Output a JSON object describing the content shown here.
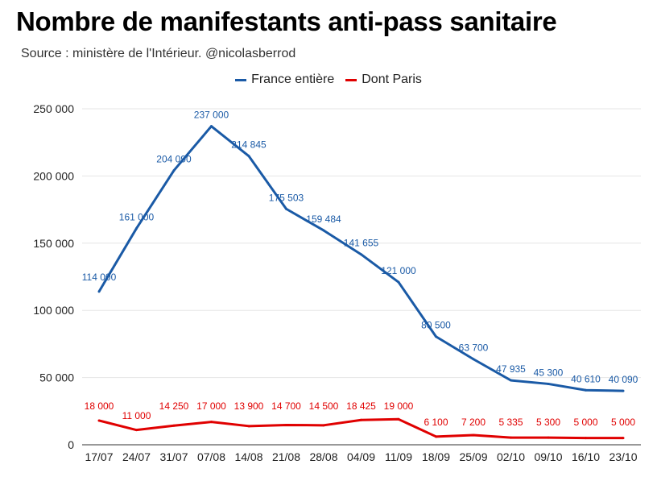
{
  "header": {
    "title": "Nombre de manifestants anti-pass sanitaire",
    "subtitle": "Source : ministère de l'Intérieur. @nicolasberrod"
  },
  "colors": {
    "france": "#1a5aa6",
    "paris": "#e00000",
    "grid": "#e6e6e6"
  },
  "chart_data": {
    "type": "line",
    "title": "Nombre de manifestants anti-pass sanitaire",
    "subtitle": "Source : ministère de l'Intérieur. @nicolasberrod",
    "categories": [
      "17/07",
      "24/07",
      "31/07",
      "07/08",
      "14/08",
      "21/08",
      "28/08",
      "04/09",
      "11/09",
      "18/09",
      "25/09",
      "02/10",
      "09/10",
      "16/10",
      "23/10"
    ],
    "series": [
      {
        "name": "France entière",
        "values": [
          114000,
          161000,
          204090,
          237000,
          214845,
          175503,
          159484,
          141655,
          121000,
          80500,
          63700,
          47935,
          45300,
          40610,
          40090
        ],
        "labels": [
          "114 000",
          "161 000",
          "204 090",
          "237 000",
          "214 845",
          "175 503",
          "159 484",
          "141 655",
          "121 000",
          "80 500",
          "63 700",
          "47 935",
          "45 300",
          "40 610",
          "40 090"
        ]
      },
      {
        "name": "Dont Paris",
        "values": [
          18000,
          11000,
          14250,
          17000,
          13900,
          14700,
          14500,
          18425,
          19000,
          6100,
          7200,
          5335,
          5300,
          5000,
          5000
        ],
        "labels": [
          "18 000",
          "11 000",
          "14 250",
          "17 000",
          "13 900",
          "14 700",
          "14 500",
          "18 425",
          "19 000",
          "6 100",
          "7 200",
          "5 335",
          "5 300",
          "5 000",
          "5 000"
        ]
      }
    ],
    "yticks": [
      0,
      50000,
      100000,
      150000,
      200000,
      250000
    ],
    "ytick_labels": [
      "0",
      "50 000",
      "100 000",
      "150 000",
      "200 000",
      "250 000"
    ],
    "ylim": [
      0,
      250000
    ],
    "grid": true,
    "legend_position": "top-center"
  }
}
